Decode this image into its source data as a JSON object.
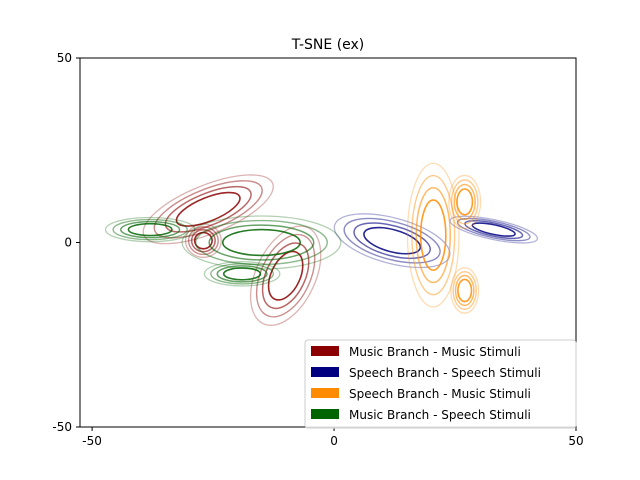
{
  "chart_data": {
    "type": "contour",
    "title": "T-SNE (ex)",
    "xlabel": "",
    "ylabel": "",
    "xlim": [
      -52.5,
      50
    ],
    "ylim": [
      -50,
      50
    ],
    "xticks": [
      -50,
      0,
      50
    ],
    "yticks": [
      -50,
      0,
      50
    ],
    "xtick_labels": [
      "-50",
      "0",
      "50"
    ],
    "ytick_labels": [
      "-50",
      "0",
      "50"
    ],
    "grid": false,
    "legend_position": "lower-right",
    "series": [
      {
        "name": "Music Branch - Music Stimuli",
        "color": "#8b0000",
        "clusters": [
          {
            "cx": -26,
            "cy": 9,
            "sx": 7,
            "sy": 3.2,
            "angle": -22
          },
          {
            "cx": -27,
            "cy": 0.5,
            "sx": 1.8,
            "sy": 2.2,
            "angle": 0
          },
          {
            "cx": -10,
            "cy": -9,
            "sx": 3,
            "sy": 7,
            "angle": 25
          }
        ]
      },
      {
        "name": "Speech Branch - Speech Stimuli",
        "color": "#000080",
        "clusters": [
          {
            "cx": 12,
            "cy": 0.5,
            "sx": 6,
            "sy": 3,
            "angle": 15
          },
          {
            "cx": 33,
            "cy": 3.5,
            "sx": 4.5,
            "sy": 1.3,
            "angle": 12
          }
        ]
      },
      {
        "name": "Speech Branch - Music Stimuli",
        "color": "#ff8c00",
        "clusters": [
          {
            "cx": 20.5,
            "cy": 2,
            "sx": 2.6,
            "sy": 9.5,
            "angle": 0
          },
          {
            "cx": 27,
            "cy": 11,
            "sx": 1.6,
            "sy": 3.5,
            "angle": 0
          },
          {
            "cx": 27,
            "cy": -13,
            "sx": 1.4,
            "sy": 3,
            "angle": 0
          }
        ]
      },
      {
        "name": "Music Branch - Speech Stimuli",
        "color": "#006400",
        "clusters": [
          {
            "cx": -38,
            "cy": 3.5,
            "sx": 4.5,
            "sy": 1.6,
            "angle": 0
          },
          {
            "cx": -15,
            "cy": 0,
            "sx": 8,
            "sy": 3.5,
            "angle": 0
          },
          {
            "cx": -19,
            "cy": -8.5,
            "sx": 3.8,
            "sy": 1.6,
            "angle": 0
          }
        ]
      }
    ],
    "contour_levels": [
      {
        "scale": 1.0,
        "opacity": 0.85,
        "width": 1.6
      },
      {
        "scale": 1.35,
        "opacity": 0.6,
        "width": 1.5
      },
      {
        "scale": 1.7,
        "opacity": 0.45,
        "width": 1.4
      },
      {
        "scale": 2.05,
        "opacity": 0.3,
        "width": 1.3
      }
    ]
  }
}
